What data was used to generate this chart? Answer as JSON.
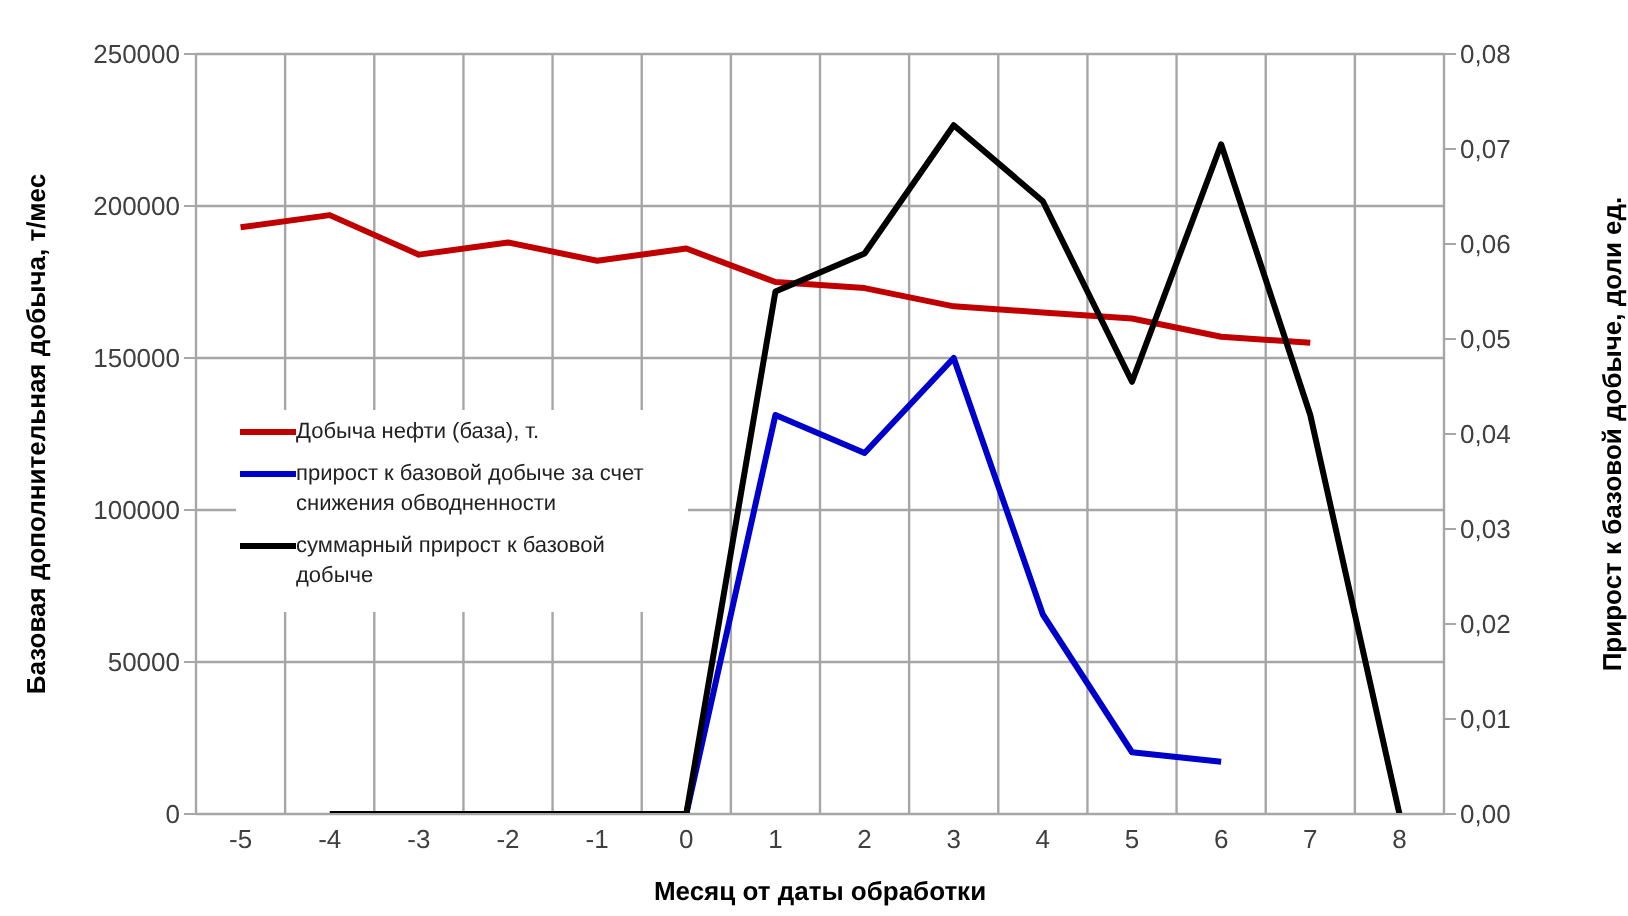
{
  "chart_data": {
    "type": "line",
    "categories": [
      "-5",
      "-4",
      "-3",
      "-2",
      "-1",
      "0",
      "1",
      "2",
      "3",
      "4",
      "5",
      "6",
      "7",
      "8"
    ],
    "series": [
      {
        "name": "Добыча нефти  (база), т.",
        "color": "#c00000",
        "values": [
          193000,
          197000,
          184000,
          188000,
          182000,
          186000,
          175000,
          173000,
          167000,
          165000,
          163000,
          157000,
          155000,
          null
        ]
      },
      {
        "name": "прирост к базовой добыче за счет снижения обводненности",
        "color": "#0000cc",
        "axis": "y2",
        "values": [
          null,
          null,
          null,
          null,
          null,
          0,
          0.042,
          0.038,
          0.048,
          0.021,
          0.0065,
          0.0055,
          null,
          null
        ]
      },
      {
        "name": "суммарный прирост к базовой добыче",
        "color": "#000000",
        "axis": "y2",
        "values": [
          null,
          0,
          0,
          0,
          0,
          0,
          0.055,
          0.059,
          0.0725,
          0.0645,
          0.0455,
          0.0705,
          0.042,
          0
        ]
      }
    ],
    "xlabel": "Месяц от даты обработки",
    "ylabel": "Базовая дополнительная добыча, т/мес",
    "y2label": "Прирост к базовой добыче, доли ед.",
    "ylim": [
      0,
      250000
    ],
    "yticks": [
      0,
      50000,
      100000,
      150000,
      200000,
      250000
    ],
    "y2lim": [
      0,
      0.08
    ],
    "y2ticks": [
      {
        "value": 0,
        "label": "0,00"
      },
      {
        "value": 0.01,
        "label": "0,01"
      },
      {
        "value": 0.02,
        "label": "0,02"
      },
      {
        "value": 0.03,
        "label": "0,03"
      },
      {
        "value": 0.04,
        "label": "0,04"
      },
      {
        "value": 0.05,
        "label": "0,05"
      },
      {
        "value": 0.06,
        "label": "0,06"
      },
      {
        "value": 0.07,
        "label": "0,07"
      },
      {
        "value": 0.08,
        "label": "0,08"
      }
    ],
    "grid": true,
    "legend": "left",
    "marker": "none",
    "line_style": "solid"
  }
}
